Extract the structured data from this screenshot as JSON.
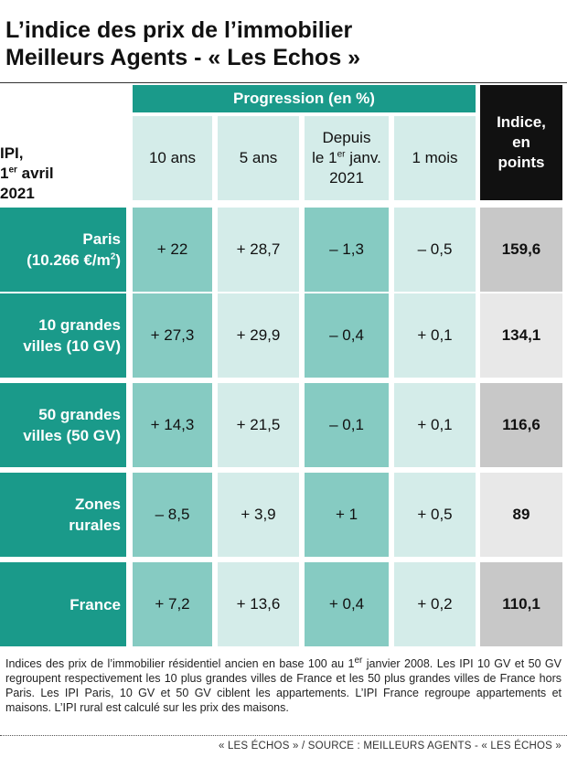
{
  "title": {
    "line1": "L’indice des prix de l’immobilier",
    "line2": "Meilleurs Agents - « Les Echos »"
  },
  "header": {
    "ipi_line1": "IPI,",
    "ipi_line2_sup": "er",
    "ipi_line2_pre": "1",
    "ipi_line2_post": " avril",
    "ipi_line3": "2021",
    "progression": "Progression (en %)",
    "columns": [
      "10 ans",
      "5 ans",
      "Depuis",
      "1 mois"
    ],
    "depuis_line2_pre": "le 1",
    "depuis_line2_sup": "er",
    "depuis_line2_post": " janv.",
    "depuis_line3": "2021",
    "index_line1": "Indice,",
    "index_line2": "en",
    "index_line3": "points"
  },
  "chart_data": {
    "type": "table",
    "title": "L’indice des prix de l’immobilier Meilleurs Agents - « Les Echos »",
    "columns": [
      "10 ans",
      "5 ans",
      "Depuis le 1er janv. 2021",
      "1 mois",
      "Indice, en points"
    ],
    "rows": [
      {
        "label1": "Paris",
        "label2_pre": "(10.266 €/m",
        "label2_sup": "2",
        "label2_post": ")",
        "values": [
          "+ 22",
          "+ 28,7",
          "– 1,3",
          "– 0,5"
        ],
        "index": "159,6"
      },
      {
        "label1": "10 grandes",
        "label2_pre": "villes (10 GV)",
        "label2_sup": "",
        "label2_post": "",
        "values": [
          "+ 27,3",
          "+ 29,9",
          "– 0,4",
          "+ 0,1"
        ],
        "index": "134,1"
      },
      {
        "label1": "50 grandes",
        "label2_pre": "villes (50 GV)",
        "label2_sup": "",
        "label2_post": "",
        "values": [
          "+ 14,3",
          "+ 21,5",
          "– 0,1",
          "+ 0,1"
        ],
        "index": "116,6"
      },
      {
        "label1": "Zones",
        "label2_pre": "rurales",
        "label2_sup": "",
        "label2_post": "",
        "values": [
          "– 8,5",
          "+ 3,9",
          "+ 1",
          "+ 0,5"
        ],
        "index": "89"
      },
      {
        "label1": "France",
        "label2_pre": "",
        "label2_sup": "",
        "label2_post": "",
        "values": [
          "+ 7,2",
          "+ 13,6",
          "+ 0,4",
          "+ 0,2"
        ],
        "index": "110,1"
      }
    ]
  },
  "footnote": {
    "pre": "Indices des prix de l’immobilier résidentiel ancien en base 100 au 1",
    "sup": "er",
    "post": " janvier 2008. Les IPI 10 GV et 50 GV regroupent respectivement les 10 plus grandes villes de France et les 50 plus grandes villes de France hors Paris. Les IPI Paris, 10 GV et 50 GV ciblent les appartements. L’IPI France regroupe appartements et maisons. L’IPI rural est calculé sur les prix des maisons."
  },
  "source": "« LES ÉCHOS » / SOURCE : MEILLEURS AGENTS - « LES ÉCHOS »",
  "colors": {
    "teal_dark": "#1a9a8a",
    "teal_mid": "#86cbc2",
    "teal_light": "#d4ece9",
    "index_dark": "#c8c8c8",
    "index_light": "#e8e8e8",
    "black": "#111111"
  }
}
